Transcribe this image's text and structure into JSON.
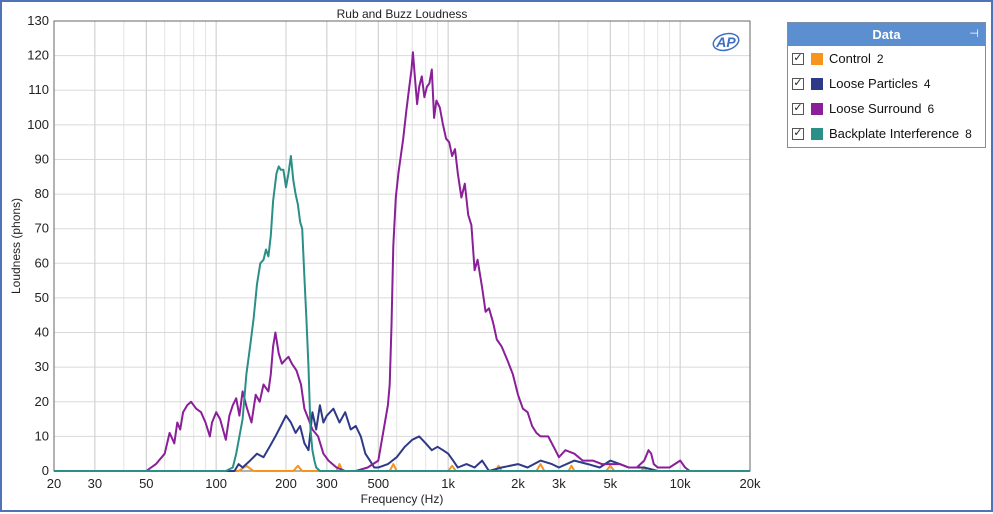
{
  "chart_data": {
    "type": "line",
    "title": "Rub and Buzz Loudness",
    "xlabel": "Frequency (Hz)",
    "ylabel": "Loudness (phons)",
    "x_scale": "log",
    "xlim": [
      20,
      20000
    ],
    "ylim": [
      0,
      130
    ],
    "x_ticks": [
      20,
      30,
      50,
      100,
      200,
      300,
      500,
      1000,
      2000,
      3000,
      5000,
      10000,
      20000
    ],
    "x_tick_labels": [
      "20",
      "30",
      "50",
      "100",
      "200",
      "300",
      "500",
      "1k",
      "2k",
      "3k",
      "5k",
      "10k",
      "20k"
    ],
    "y_ticks": [
      0,
      10,
      20,
      30,
      40,
      50,
      60,
      70,
      80,
      90,
      100,
      110,
      120,
      130
    ],
    "grid": true,
    "legend_position": "right",
    "series": [
      {
        "name": "Control",
        "count": "2",
        "color": "#f7941d",
        "points": [
          [
            20,
            0
          ],
          [
            125,
            0
          ],
          [
            135,
            1.5
          ],
          [
            145,
            0
          ],
          [
            215,
            0
          ],
          [
            225,
            1.5
          ],
          [
            235,
            0
          ],
          [
            330,
            0
          ],
          [
            340,
            2
          ],
          [
            350,
            0
          ],
          [
            560,
            0
          ],
          [
            580,
            2
          ],
          [
            600,
            0
          ],
          [
            1000,
            0
          ],
          [
            1040,
            1.5
          ],
          [
            1080,
            0
          ],
          [
            1600,
            0
          ],
          [
            1650,
            1.5
          ],
          [
            1700,
            0
          ],
          [
            2400,
            0
          ],
          [
            2500,
            2
          ],
          [
            2600,
            0
          ],
          [
            3300,
            0
          ],
          [
            3400,
            1.5
          ],
          [
            3500,
            0
          ],
          [
            4800,
            0
          ],
          [
            5000,
            1.5
          ],
          [
            5200,
            0
          ],
          [
            6800,
            0
          ],
          [
            7000,
            1
          ],
          [
            7200,
            0
          ],
          [
            20000,
            0
          ]
        ]
      },
      {
        "name": "Loose Particles",
        "count": "4",
        "color": "#2e3a87",
        "points": [
          [
            20,
            0
          ],
          [
            120,
            0
          ],
          [
            125,
            2
          ],
          [
            130,
            1
          ],
          [
            140,
            3
          ],
          [
            150,
            5
          ],
          [
            160,
            4
          ],
          [
            170,
            7
          ],
          [
            180,
            10
          ],
          [
            190,
            13
          ],
          [
            200,
            16
          ],
          [
            210,
            14
          ],
          [
            220,
            11
          ],
          [
            230,
            13
          ],
          [
            240,
            8
          ],
          [
            250,
            6
          ],
          [
            260,
            17
          ],
          [
            270,
            12
          ],
          [
            280,
            19
          ],
          [
            290,
            14
          ],
          [
            300,
            16
          ],
          [
            320,
            18
          ],
          [
            340,
            14
          ],
          [
            360,
            17
          ],
          [
            380,
            12
          ],
          [
            400,
            13
          ],
          [
            420,
            10
          ],
          [
            440,
            5
          ],
          [
            460,
            3
          ],
          [
            480,
            1
          ],
          [
            500,
            1
          ],
          [
            550,
            2
          ],
          [
            600,
            4
          ],
          [
            650,
            7
          ],
          [
            700,
            9
          ],
          [
            750,
            10
          ],
          [
            800,
            8
          ],
          [
            850,
            6
          ],
          [
            900,
            7
          ],
          [
            950,
            6
          ],
          [
            1000,
            5
          ],
          [
            1050,
            3
          ],
          [
            1100,
            1
          ],
          [
            1200,
            2
          ],
          [
            1300,
            1
          ],
          [
            1400,
            3
          ],
          [
            1500,
            0
          ],
          [
            1700,
            1
          ],
          [
            2000,
            2
          ],
          [
            2200,
            1
          ],
          [
            2500,
            3
          ],
          [
            2800,
            2
          ],
          [
            3000,
            1
          ],
          [
            3500,
            3
          ],
          [
            4000,
            2
          ],
          [
            4500,
            1
          ],
          [
            5000,
            3
          ],
          [
            5500,
            2
          ],
          [
            6000,
            1
          ],
          [
            7000,
            1
          ],
          [
            8000,
            0
          ],
          [
            20000,
            0
          ]
        ]
      },
      {
        "name": "Loose Surround",
        "count": "6",
        "color": "#8a1f99",
        "points": [
          [
            20,
            0
          ],
          [
            50,
            0
          ],
          [
            55,
            2
          ],
          [
            60,
            5
          ],
          [
            63,
            11
          ],
          [
            66,
            8
          ],
          [
            68,
            14
          ],
          [
            70,
            12
          ],
          [
            72,
            17
          ],
          [
            75,
            19
          ],
          [
            78,
            20
          ],
          [
            82,
            18
          ],
          [
            86,
            17
          ],
          [
            90,
            14
          ],
          [
            94,
            10
          ],
          [
            96,
            14
          ],
          [
            100,
            17
          ],
          [
            104,
            15
          ],
          [
            107,
            12
          ],
          [
            110,
            9
          ],
          [
            114,
            16
          ],
          [
            118,
            19
          ],
          [
            122,
            21
          ],
          [
            126,
            16
          ],
          [
            130,
            23
          ],
          [
            136,
            18
          ],
          [
            142,
            14
          ],
          [
            148,
            22
          ],
          [
            154,
            20
          ],
          [
            160,
            25
          ],
          [
            168,
            23
          ],
          [
            172,
            28
          ],
          [
            176,
            36
          ],
          [
            180,
            40
          ],
          [
            186,
            34
          ],
          [
            192,
            31
          ],
          [
            198,
            32
          ],
          [
            205,
            33
          ],
          [
            212,
            31
          ],
          [
            222,
            29
          ],
          [
            232,
            25
          ],
          [
            240,
            18
          ],
          [
            250,
            15
          ],
          [
            260,
            12
          ],
          [
            275,
            10
          ],
          [
            290,
            5
          ],
          [
            305,
            3
          ],
          [
            330,
            1
          ],
          [
            360,
            0
          ],
          [
            400,
            0
          ],
          [
            450,
            1
          ],
          [
            500,
            3
          ],
          [
            540,
            16
          ],
          [
            550,
            19
          ],
          [
            560,
            25
          ],
          [
            570,
            42
          ],
          [
            580,
            65
          ],
          [
            595,
            79
          ],
          [
            610,
            86
          ],
          [
            625,
            91
          ],
          [
            640,
            96
          ],
          [
            660,
            104
          ],
          [
            680,
            111
          ],
          [
            695,
            116
          ],
          [
            705,
            121
          ],
          [
            720,
            113
          ],
          [
            735,
            106
          ],
          [
            750,
            111
          ],
          [
            770,
            114
          ],
          [
            790,
            108
          ],
          [
            810,
            111
          ],
          [
            830,
            112
          ],
          [
            850,
            116
          ],
          [
            870,
            102
          ],
          [
            890,
            107
          ],
          [
            920,
            105
          ],
          [
            950,
            100
          ],
          [
            980,
            96
          ],
          [
            1010,
            95
          ],
          [
            1040,
            91
          ],
          [
            1070,
            93
          ],
          [
            1100,
            86
          ],
          [
            1140,
            79
          ],
          [
            1180,
            83
          ],
          [
            1220,
            74
          ],
          [
            1260,
            71
          ],
          [
            1300,
            58
          ],
          [
            1340,
            61
          ],
          [
            1400,
            53
          ],
          [
            1450,
            46
          ],
          [
            1500,
            47
          ],
          [
            1560,
            43
          ],
          [
            1620,
            38
          ],
          [
            1700,
            36
          ],
          [
            1800,
            32
          ],
          [
            1900,
            28
          ],
          [
            2000,
            22
          ],
          [
            2100,
            18
          ],
          [
            2200,
            17
          ],
          [
            2300,
            13
          ],
          [
            2400,
            11
          ],
          [
            2500,
            10
          ],
          [
            2700,
            10
          ],
          [
            2900,
            6
          ],
          [
            3000,
            4
          ],
          [
            3200,
            6
          ],
          [
            3500,
            5
          ],
          [
            3800,
            3
          ],
          [
            4200,
            3
          ],
          [
            4600,
            2
          ],
          [
            5000,
            2
          ],
          [
            5500,
            2
          ],
          [
            6000,
            1
          ],
          [
            6500,
            1
          ],
          [
            7000,
            3
          ],
          [
            7300,
            6
          ],
          [
            7500,
            5
          ],
          [
            7700,
            2
          ],
          [
            8000,
            1
          ],
          [
            9000,
            1
          ],
          [
            10000,
            3
          ],
          [
            10500,
            1
          ],
          [
            11000,
            0
          ],
          [
            20000,
            0
          ]
        ]
      },
      {
        "name": "Backplate Interference",
        "count": "8",
        "color": "#2a8f86",
        "points": [
          [
            20,
            0
          ],
          [
            110,
            0
          ],
          [
            118,
            1
          ],
          [
            122,
            5
          ],
          [
            126,
            10
          ],
          [
            130,
            15
          ],
          [
            135,
            28
          ],
          [
            140,
            36
          ],
          [
            145,
            44
          ],
          [
            150,
            54
          ],
          [
            155,
            60
          ],
          [
            160,
            61
          ],
          [
            164,
            64
          ],
          [
            168,
            62
          ],
          [
            172,
            68
          ],
          [
            176,
            78
          ],
          [
            182,
            86
          ],
          [
            186,
            88
          ],
          [
            190,
            87
          ],
          [
            195,
            87
          ],
          [
            200,
            82
          ],
          [
            205,
            86
          ],
          [
            210,
            91
          ],
          [
            215,
            84
          ],
          [
            220,
            80
          ],
          [
            225,
            77
          ],
          [
            230,
            72
          ],
          [
            235,
            70
          ],
          [
            240,
            56
          ],
          [
            245,
            44
          ],
          [
            250,
            30
          ],
          [
            255,
            12
          ],
          [
            260,
            6
          ],
          [
            265,
            3
          ],
          [
            270,
            1
          ],
          [
            280,
            0
          ],
          [
            20000,
            0
          ]
        ]
      }
    ]
  },
  "legend": {
    "header": "Data",
    "pin_glyph": "⊣"
  },
  "logo_text": "AP"
}
